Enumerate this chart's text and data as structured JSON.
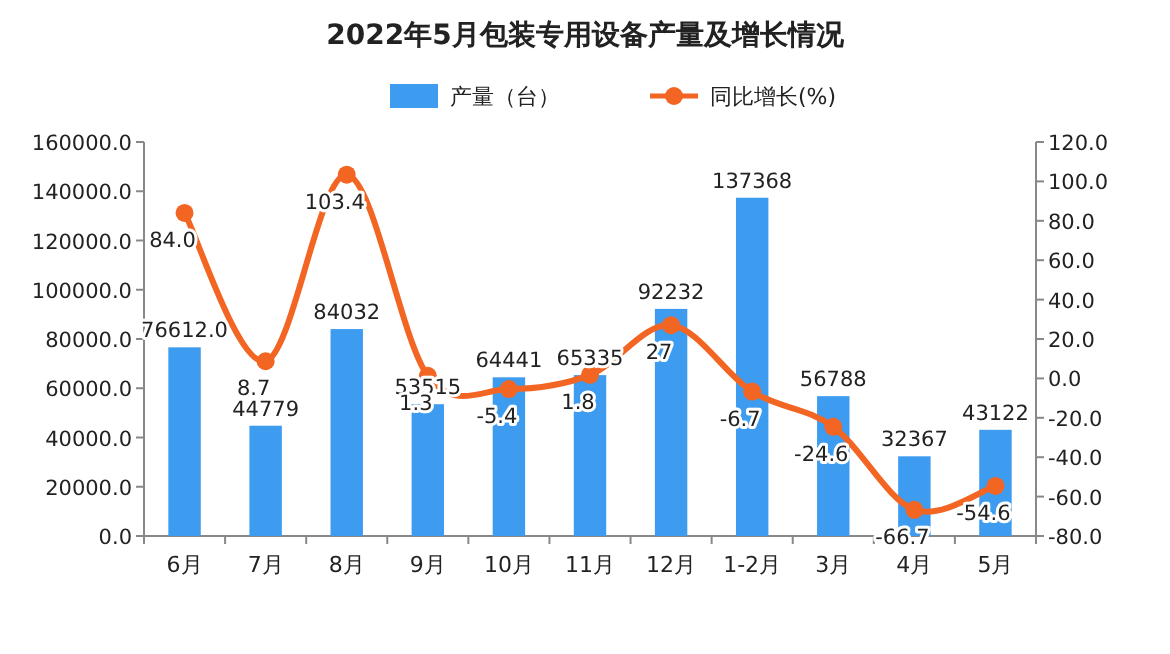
{
  "chart_data": {
    "type": "bar",
    "title": "2022年5月包装专用设备产量及增长情况",
    "categories": [
      "6月",
      "7月",
      "8月",
      "9月",
      "10月",
      "11月",
      "12月",
      "1-2月",
      "3月",
      "4月",
      "5月"
    ],
    "series": [
      {
        "name": "产量（台）",
        "color": "#3d9cf0",
        "values": [
          76612,
          44779,
          84032,
          53515,
          64441,
          65335,
          92232,
          137368,
          56788,
          32367,
          43122
        ],
        "value_labels": [
          "76612.0",
          "44779",
          "84032",
          "53515",
          "64441",
          "65335",
          "92232",
          "137368",
          "56788",
          "32367",
          "43122"
        ]
      },
      {
        "name": "同比增长(%)",
        "type": "line",
        "axis": "y2",
        "color": "#f26522",
        "marker": "circle",
        "values": [
          84.0,
          8.7,
          103.4,
          1.3,
          -5.4,
          1.8,
          27,
          -6.7,
          -24.6,
          -66.7,
          -54.6
        ],
        "value_labels": [
          "84.0",
          "8.7",
          "103.4",
          "1.3",
          "-5.4",
          "1.8",
          "27",
          "-6.7",
          "-24.6",
          "-66.7",
          "-54.6"
        ]
      }
    ],
    "ylim": [
      0,
      160000
    ],
    "yticks": [
      {
        "value": 0,
        "label": "0.0"
      },
      {
        "value": 20000,
        "label": "20000.0"
      },
      {
        "value": 40000,
        "label": "40000.0"
      },
      {
        "value": 60000,
        "label": "60000.0"
      },
      {
        "value": 80000,
        "label": "80000.0"
      },
      {
        "value": 100000,
        "label": "100000.0"
      },
      {
        "value": 120000,
        "label": "120000.0"
      },
      {
        "value": 140000,
        "label": "140000.0"
      },
      {
        "value": 160000,
        "label": "160000.0"
      }
    ],
    "y2lim": [
      -80,
      120
    ],
    "y2ticks": [
      {
        "value": -80,
        "label": "-80.0"
      },
      {
        "value": -60,
        "label": "-60.0"
      },
      {
        "value": -40,
        "label": "-40.0"
      },
      {
        "value": -20,
        "label": "-20.0"
      },
      {
        "value": 0,
        "label": "0.0"
      },
      {
        "value": 20,
        "label": "20.0"
      },
      {
        "value": 40,
        "label": "40.0"
      },
      {
        "value": 60,
        "label": "60.0"
      },
      {
        "value": 80,
        "label": "80.0"
      },
      {
        "value": 100,
        "label": "100.0"
      },
      {
        "value": 120,
        "label": "120.0"
      }
    ],
    "legend": "top"
  }
}
